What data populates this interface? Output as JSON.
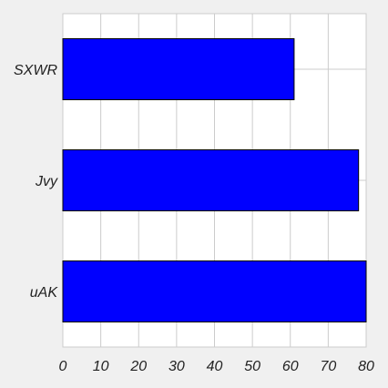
{
  "chart_data": {
    "type": "bar",
    "orientation": "horizontal",
    "categories": [
      "SXWR",
      "Jvy",
      "uAK"
    ],
    "values": [
      61,
      78,
      80
    ],
    "xlim": [
      0,
      80
    ],
    "xticks": [
      0,
      10,
      20,
      30,
      40,
      50,
      60,
      70,
      80
    ],
    "grid": true,
    "colors": {
      "bar_fill": "#0000ff",
      "bar_edge": "#000000",
      "plot_background": "#ffffff",
      "page_background": "#f0f0f0",
      "grid": "#cccccc"
    }
  }
}
